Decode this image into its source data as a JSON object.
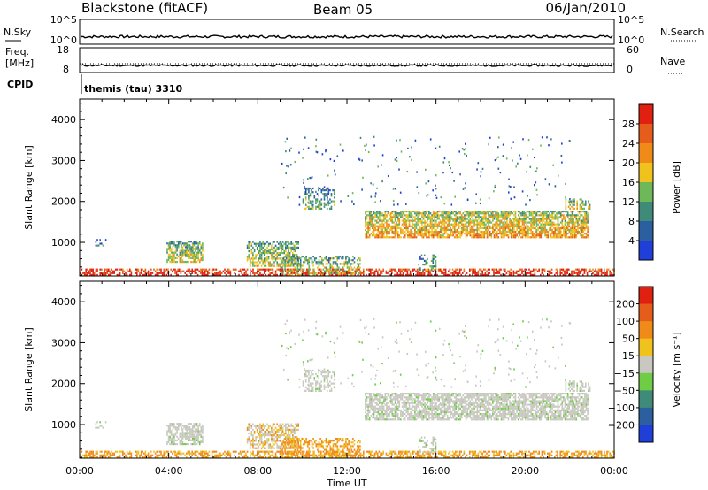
{
  "header": {
    "station": "Blackstone (fitACF)",
    "beam": "Beam 05",
    "date": "06/Jan/2010"
  },
  "top_panels": {
    "nsky_label": "N.Sky",
    "nsky_ticks": [
      "10^5",
      "10^0"
    ],
    "nsearch_label": "N.Search",
    "nsearch_ticks": [
      "10^5",
      "10^0"
    ],
    "freq_label": "Freq.",
    "freq_unit": "[MHz]",
    "freq_ticks": [
      "18",
      "8"
    ],
    "nave_label": "Nave",
    "nave_ticks": [
      "60",
      "0"
    ],
    "cpid_label": "CPID",
    "cpid_text": "themis (tau) 3310"
  },
  "chart_data": [
    {
      "type": "heatmap",
      "name": "power",
      "ylabel": "Slant Range [km]",
      "xlabel": "",
      "ylim": [
        180,
        4500
      ],
      "xlim_hours": [
        0,
        24
      ],
      "y_ticks": [
        "1000",
        "2000",
        "3000",
        "4000"
      ],
      "colorbar": {
        "label": "Power [dB]",
        "ticks": [
          "4",
          "8",
          "12",
          "16",
          "20",
          "24",
          "28"
        ],
        "colors": [
          "#1f3fd8",
          "#2b5fa0",
          "#3f8a78",
          "#6fb85a",
          "#f0c21e",
          "#f08a18",
          "#e65c1a",
          "#e02010"
        ]
      }
    },
    {
      "type": "heatmap",
      "name": "velocity",
      "ylabel": "Slant Range [km]",
      "xlabel": "Time UT",
      "ylim": [
        180,
        4500
      ],
      "xlim_hours": [
        0,
        24
      ],
      "y_ticks": [
        "1000",
        "2000",
        "3000",
        "4000"
      ],
      "x_ticks": [
        "00:00",
        "04:00",
        "08:00",
        "12:00",
        "16:00",
        "20:00",
        "00:00"
      ],
      "colorbar": {
        "label": "Velocity [m s⁻¹]",
        "ticks": [
          "200",
          "100",
          "50",
          "15",
          "−15",
          "−50",
          "−100",
          "−200"
        ],
        "colors": [
          "#1f3fd8",
          "#2b5fa0",
          "#3f8a78",
          "#6fcc45",
          "#c8c8c0",
          "#f0c21e",
          "#f08a18",
          "#e65c1a",
          "#e02010"
        ]
      }
    }
  ]
}
